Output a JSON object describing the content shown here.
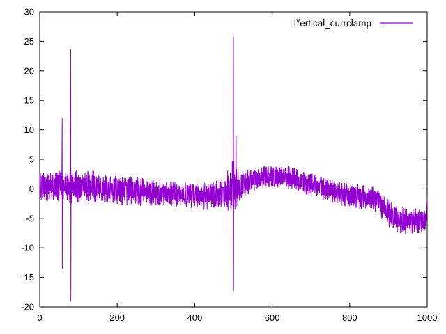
{
  "chart_data": {
    "type": "line",
    "title": "",
    "legend": {
      "prefix": "I",
      "superscript": "v",
      "rest": "ertical_currclamp",
      "position": "top-right"
    },
    "xlabel": "",
    "ylabel": "",
    "xlim": [
      0,
      1000
    ],
    "ylim": [
      -20,
      30
    ],
    "xticks": [
      0,
      200,
      400,
      600,
      800,
      1000
    ],
    "yticks": [
      30,
      25,
      20,
      15,
      10,
      5,
      0,
      -5,
      -10,
      -15,
      -20
    ],
    "grid": false,
    "line_color": "#9400D3",
    "axis_color": "#000000",
    "background_color": "#ffffff",
    "noise_envelope": [
      [
        0,
        -2.0,
        3.0
      ],
      [
        55,
        -2.1,
        3.0
      ],
      [
        90,
        -2.6,
        3.0
      ],
      [
        100,
        -2.3,
        3.4
      ],
      [
        135,
        -2.3,
        3.4
      ],
      [
        150,
        -2.2,
        2.4
      ],
      [
        235,
        -2.9,
        2.1
      ],
      [
        330,
        -2.8,
        1.3
      ],
      [
        430,
        -3.6,
        1.0
      ],
      [
        478,
        -3.0,
        1.7
      ],
      [
        492,
        -4.5,
        4.5
      ],
      [
        496,
        -5.0,
        5.0
      ],
      [
        512,
        -3.5,
        4.0
      ],
      [
        520,
        -2.0,
        3.0
      ],
      [
        548,
        -0.5,
        3.4
      ],
      [
        575,
        0.2,
        3.8
      ],
      [
        640,
        0.1,
        3.9
      ],
      [
        665,
        -0.5,
        3.3
      ],
      [
        700,
        -1.2,
        2.7
      ],
      [
        740,
        -2.0,
        1.7
      ],
      [
        780,
        -2.9,
        1.0
      ],
      [
        830,
        -3.4,
        0.7
      ],
      [
        862,
        -3.8,
        0.3
      ],
      [
        875,
        -4.5,
        -0.3
      ],
      [
        895,
        -6.2,
        -1.5
      ],
      [
        915,
        -7.2,
        -2.7
      ],
      [
        940,
        -7.7,
        -3.2
      ],
      [
        997,
        -7.4,
        -3.4
      ],
      [
        1000,
        -1.6,
        -1.4
      ]
    ],
    "spikes": [
      {
        "x": 58,
        "top": 12.0,
        "bottom": -13.5
      },
      {
        "x": 80,
        "top": 23.6,
        "bottom": -19.0
      },
      {
        "x": 500,
        "top": 25.8,
        "bottom": -17.3
      },
      {
        "x": 507,
        "top": 9.0,
        "bottom": -3.0
      }
    ]
  }
}
